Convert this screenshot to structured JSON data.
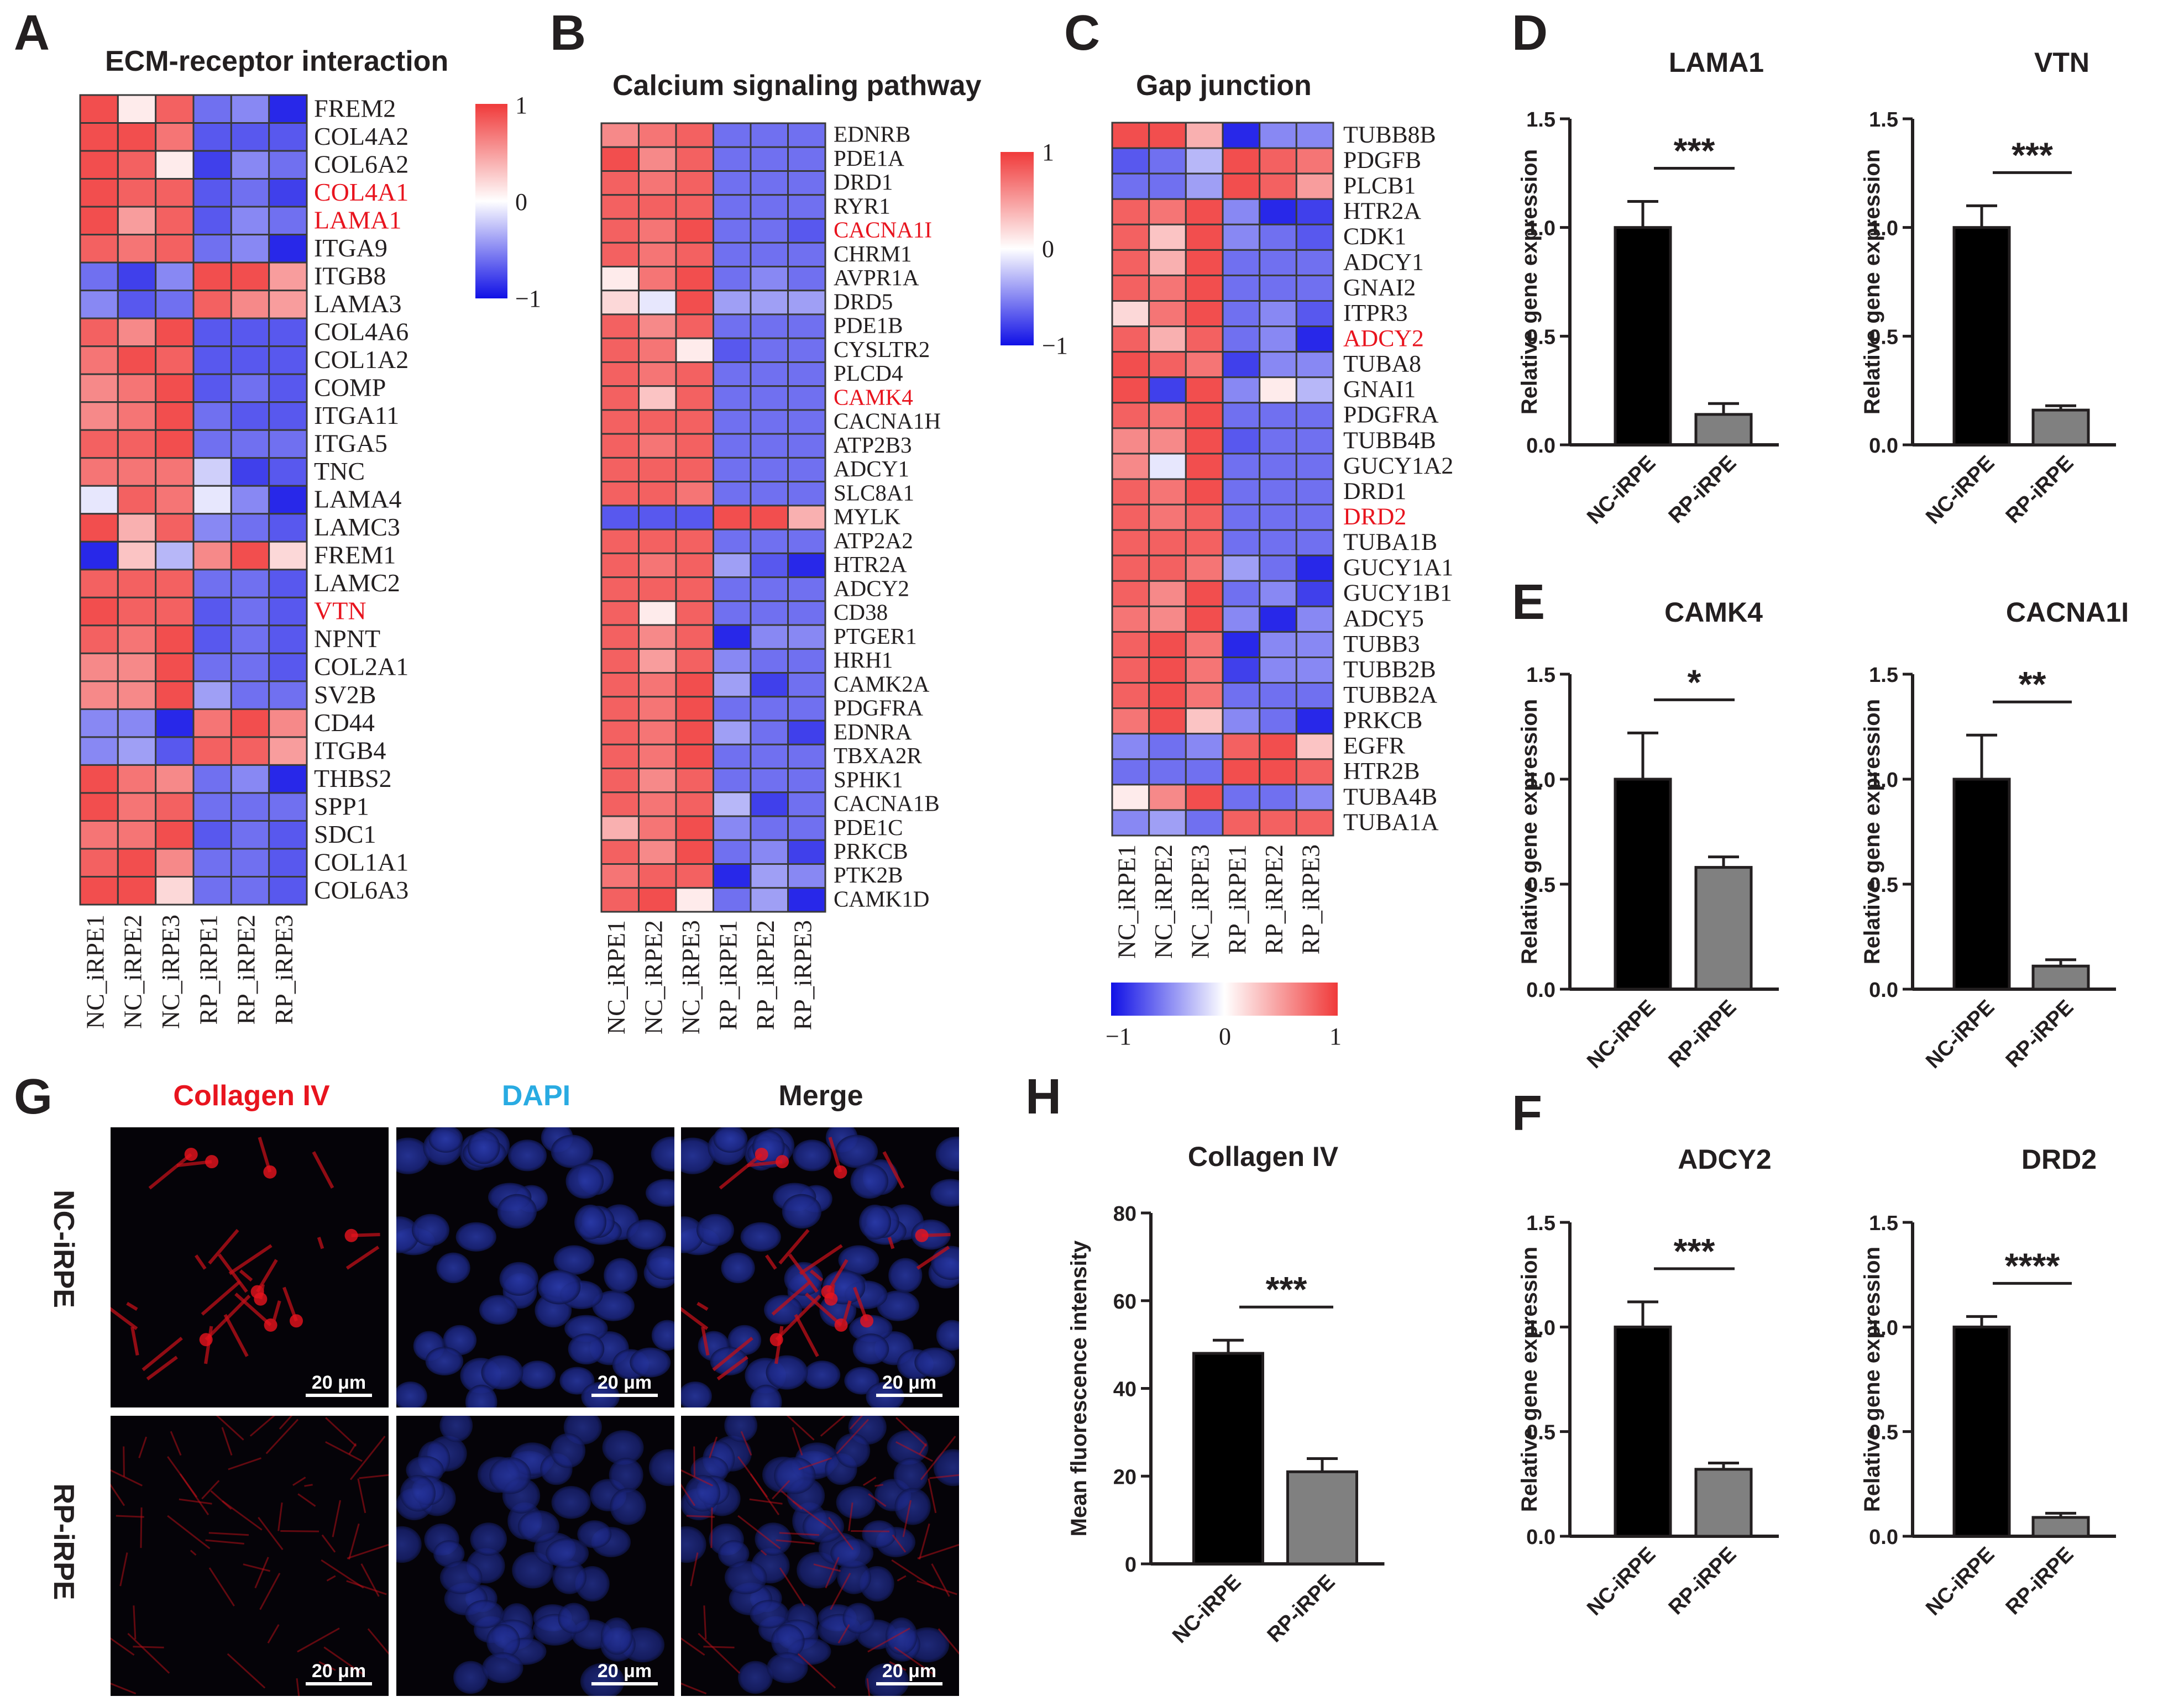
{
  "panels": {
    "A": "A",
    "B": "B",
    "C": "C",
    "D": "D",
    "E": "E",
    "F": "F",
    "G": "G",
    "H": "H"
  },
  "colors": {
    "high": "#f03a3a",
    "mid": "#ffffff",
    "low": "#1010e6",
    "highlight": "#e8141e",
    "bar_nc": "#000000",
    "bar_rp": "#808080"
  },
  "chart_data": [
    {
      "id": "heatmapA",
      "type": "heatmap",
      "title": "ECM-receptor interaction",
      "columns": [
        "NC_iRPE1",
        "NC_iRPE2",
        "NC_iRPE3",
        "RP_iRPE1",
        "RP_iRPE2",
        "RP_iRPE3"
      ],
      "rows": [
        "FREM2",
        "COL4A2",
        "COL6A2",
        "COL4A1",
        "LAMA1",
        "ITGA9",
        "ITGB8",
        "LAMA3",
        "COL4A6",
        "COL1A2",
        "COMP",
        "ITGA11",
        "ITGA5",
        "TNC",
        "LAMA4",
        "LAMC3",
        "FREM1",
        "LAMC2",
        "VTN",
        "NPNT",
        "COL2A1",
        "SV2B",
        "CD44",
        "ITGB4",
        "THBS2",
        "SPP1",
        "SDC1",
        "COL1A1",
        "COL6A3"
      ],
      "highlighted": [
        "COL4A1",
        "LAMA1",
        "VTN"
      ],
      "legend": {
        "max": "1",
        "mid": "0",
        "min": "−1"
      },
      "values": [
        [
          0.9,
          0.1,
          0.8,
          -0.6,
          -0.5,
          -0.9
        ],
        [
          0.9,
          0.9,
          0.7,
          -0.7,
          -0.7,
          -0.7
        ],
        [
          0.9,
          0.8,
          0.1,
          -0.8,
          -0.5,
          -0.6
        ],
        [
          0.9,
          0.8,
          0.8,
          -0.7,
          -0.6,
          -0.8
        ],
        [
          0.9,
          0.5,
          0.8,
          -0.7,
          -0.5,
          -0.6
        ],
        [
          0.8,
          0.7,
          0.8,
          -0.6,
          -0.5,
          -0.9
        ],
        [
          -0.6,
          -0.8,
          -0.5,
          0.9,
          0.9,
          0.5
        ],
        [
          -0.5,
          -0.7,
          -0.6,
          0.8,
          0.6,
          0.5
        ],
        [
          0.8,
          0.6,
          0.9,
          -0.7,
          -0.7,
          -0.7
        ],
        [
          0.7,
          0.9,
          0.8,
          -0.7,
          -0.7,
          -0.7
        ],
        [
          0.6,
          0.7,
          0.9,
          -0.7,
          -0.6,
          -0.7
        ],
        [
          0.6,
          0.7,
          0.9,
          -0.6,
          -0.7,
          -0.7
        ],
        [
          0.8,
          0.8,
          0.9,
          -0.6,
          -0.6,
          -0.6
        ],
        [
          0.7,
          0.7,
          0.7,
          -0.2,
          -0.8,
          -0.7
        ],
        [
          -0.1,
          0.8,
          0.7,
          -0.1,
          -0.5,
          -0.9
        ],
        [
          0.9,
          0.4,
          0.8,
          -0.5,
          -0.6,
          -0.7
        ],
        [
          -0.9,
          0.3,
          -0.3,
          0.6,
          0.9,
          0.2
        ],
        [
          0.8,
          0.8,
          0.8,
          -0.6,
          -0.6,
          -0.7
        ],
        [
          0.9,
          0.8,
          0.8,
          -0.7,
          -0.6,
          -0.7
        ],
        [
          0.8,
          0.7,
          0.9,
          -0.7,
          -0.6,
          -0.7
        ],
        [
          0.6,
          0.6,
          0.9,
          -0.6,
          -0.6,
          -0.7
        ],
        [
          0.6,
          0.6,
          0.9,
          -0.4,
          -0.6,
          -0.6
        ],
        [
          -0.5,
          -0.5,
          -0.9,
          0.7,
          0.9,
          0.6
        ],
        [
          -0.5,
          -0.4,
          -0.7,
          0.8,
          0.8,
          0.5
        ],
        [
          0.9,
          0.7,
          0.6,
          -0.6,
          -0.5,
          -0.9
        ],
        [
          0.9,
          0.7,
          0.8,
          -0.6,
          -0.6,
          -0.6
        ],
        [
          0.7,
          0.7,
          0.9,
          -0.7,
          -0.6,
          -0.7
        ],
        [
          0.8,
          0.9,
          0.6,
          -0.6,
          -0.6,
          -0.7
        ],
        [
          0.9,
          0.9,
          0.2,
          -0.6,
          -0.6,
          -0.7
        ]
      ]
    },
    {
      "id": "heatmapB",
      "type": "heatmap",
      "title": "Calcium signaling pathway",
      "columns": [
        "NC_iRPE1",
        "NC_iRPE2",
        "NC_iRPE3",
        "RP_iRPE1",
        "RP_iRPE2",
        "RP_iRPE3"
      ],
      "rows": [
        "EDNRB",
        "PDE1A",
        "DRD1",
        "RYR1",
        "CACNA1I",
        "CHRM1",
        "AVPR1A",
        "DRD5",
        "PDE1B",
        "CYSLTR2",
        "PLCD4",
        "CAMK4",
        "CACNA1H",
        "ATP2B3",
        "ADCY1",
        "SLC8A1",
        "MYLK",
        "ATP2A2",
        "HTR2A",
        "ADCY2",
        "CD38",
        "PTGER1",
        "HRH1",
        "CAMK2A",
        "PDGFRA",
        "EDNRA",
        "TBXA2R",
        "SPHK1",
        "CACNA1B",
        "PDE1C",
        "PRKCB",
        "PTK2B",
        "CAMK1D"
      ],
      "highlighted": [
        "CACNA1I",
        "CAMK4"
      ],
      "legend": {
        "max": "1",
        "mid": "0",
        "min": "−1"
      },
      "values": [
        [
          0.6,
          0.7,
          0.8,
          -0.6,
          -0.6,
          -0.6
        ],
        [
          0.9,
          0.6,
          0.8,
          -0.6,
          -0.6,
          -0.6
        ],
        [
          0.8,
          0.7,
          0.8,
          -0.6,
          -0.6,
          -0.6
        ],
        [
          0.8,
          0.8,
          0.8,
          -0.6,
          -0.6,
          -0.6
        ],
        [
          0.8,
          0.7,
          0.9,
          -0.6,
          -0.6,
          -0.7
        ],
        [
          0.8,
          0.7,
          0.8,
          -0.6,
          -0.6,
          -0.6
        ],
        [
          0.1,
          0.7,
          0.9,
          -0.6,
          -0.5,
          -0.6
        ],
        [
          0.2,
          -0.1,
          0.9,
          -0.4,
          -0.4,
          -0.4
        ],
        [
          0.8,
          0.6,
          0.8,
          -0.6,
          -0.6,
          -0.6
        ],
        [
          0.8,
          0.7,
          0.1,
          -0.7,
          -0.6,
          -0.6
        ],
        [
          0.8,
          0.7,
          0.8,
          -0.6,
          -0.6,
          -0.6
        ],
        [
          0.8,
          0.3,
          0.8,
          -0.6,
          -0.6,
          -0.6
        ],
        [
          0.8,
          0.8,
          0.8,
          -0.6,
          -0.6,
          -0.6
        ],
        [
          0.8,
          0.7,
          0.8,
          -0.6,
          -0.6,
          -0.6
        ],
        [
          0.8,
          0.8,
          0.8,
          -0.6,
          -0.6,
          -0.6
        ],
        [
          0.8,
          0.8,
          0.7,
          -0.6,
          -0.6,
          -0.6
        ],
        [
          -0.7,
          -0.7,
          -0.7,
          0.9,
          0.9,
          0.4
        ],
        [
          0.8,
          0.8,
          0.8,
          -0.6,
          -0.6,
          -0.6
        ],
        [
          0.8,
          0.7,
          0.8,
          -0.4,
          -0.7,
          -0.9
        ],
        [
          0.8,
          0.8,
          0.8,
          -0.6,
          -0.6,
          -0.6
        ],
        [
          0.8,
          0.1,
          0.8,
          -0.6,
          -0.6,
          -0.6
        ],
        [
          0.8,
          0.6,
          0.8,
          -0.9,
          -0.5,
          -0.5
        ],
        [
          0.8,
          0.5,
          0.8,
          -0.5,
          -0.6,
          -0.6
        ],
        [
          0.8,
          0.7,
          0.9,
          -0.4,
          -0.8,
          -0.6
        ],
        [
          0.8,
          0.7,
          0.9,
          -0.6,
          -0.6,
          -0.6
        ],
        [
          0.8,
          0.7,
          0.9,
          -0.4,
          -0.6,
          -0.8
        ],
        [
          0.8,
          0.7,
          0.9,
          -0.6,
          -0.6,
          -0.6
        ],
        [
          0.8,
          0.6,
          0.8,
          -0.6,
          -0.6,
          -0.6
        ],
        [
          0.8,
          0.7,
          0.8,
          -0.3,
          -0.8,
          -0.6
        ],
        [
          0.4,
          0.7,
          0.9,
          -0.5,
          -0.6,
          -0.6
        ],
        [
          0.8,
          0.6,
          0.9,
          -0.6,
          -0.5,
          -0.8
        ],
        [
          0.7,
          0.8,
          0.8,
          -0.9,
          -0.4,
          -0.5
        ],
        [
          0.8,
          0.9,
          0.1,
          -0.6,
          -0.4,
          -0.9
        ]
      ]
    },
    {
      "id": "heatmapC",
      "type": "heatmap",
      "title": "Gap  junction",
      "columns": [
        "NC_iRPE1",
        "NC_iRPE2",
        "NC_iRPE3",
        "RP_iRPE1",
        "RP_iRPE2",
        "RP_iRPE3"
      ],
      "rows": [
        "TUBB8B",
        "PDGFB",
        "PLCB1",
        "HTR2A",
        "CDK1",
        "ADCY1",
        "GNAI2",
        "ITPR3",
        "ADCY2",
        "TUBA8",
        "GNAI1",
        "PDGFRA",
        "TUBB4B",
        "GUCY1A2",
        "DRD1",
        "DRD2",
        "TUBA1B",
        "GUCY1A1",
        "GUCY1B1",
        "ADCY5",
        "TUBB3",
        "TUBB2B",
        "TUBB2A",
        "PRKCB",
        "EGFR",
        "HTR2B",
        "TUBA4B",
        "TUBA1A"
      ],
      "highlighted": [
        "ADCY2",
        "DRD2"
      ],
      "legend": {
        "max": "1",
        "mid": "0",
        "min": "−1"
      },
      "values": [
        [
          0.9,
          0.9,
          0.4,
          -0.9,
          -0.5,
          -0.5
        ],
        [
          -0.7,
          -0.6,
          -0.3,
          0.9,
          0.8,
          0.7
        ],
        [
          -0.6,
          -0.6,
          -0.4,
          0.9,
          0.8,
          0.5
        ],
        [
          0.8,
          0.7,
          0.9,
          -0.5,
          -0.9,
          -0.8
        ],
        [
          0.8,
          0.3,
          0.9,
          -0.5,
          -0.6,
          -0.7
        ],
        [
          0.8,
          0.4,
          0.9,
          -0.6,
          -0.6,
          -0.6
        ],
        [
          0.8,
          0.7,
          0.9,
          -0.6,
          -0.6,
          -0.6
        ],
        [
          0.2,
          0.7,
          0.9,
          -0.6,
          -0.5,
          -0.7
        ],
        [
          0.8,
          0.4,
          0.8,
          -0.6,
          -0.5,
          -0.9
        ],
        [
          0.9,
          0.8,
          0.7,
          -0.8,
          -0.5,
          -0.5
        ],
        [
          0.9,
          -0.8,
          0.9,
          -0.5,
          0.1,
          -0.3
        ],
        [
          0.8,
          0.7,
          0.9,
          -0.6,
          -0.6,
          -0.6
        ],
        [
          0.6,
          0.6,
          0.9,
          -0.7,
          -0.6,
          -0.6
        ],
        [
          0.6,
          -0.1,
          0.9,
          -0.6,
          -0.6,
          -0.6
        ],
        [
          0.8,
          0.7,
          0.9,
          -0.6,
          -0.6,
          -0.6
        ],
        [
          0.8,
          0.7,
          0.8,
          -0.6,
          -0.6,
          -0.6
        ],
        [
          0.8,
          0.8,
          0.8,
          -0.6,
          -0.6,
          -0.6
        ],
        [
          0.8,
          0.8,
          0.7,
          -0.4,
          -0.6,
          -0.9
        ],
        [
          0.8,
          0.6,
          0.9,
          -0.6,
          -0.5,
          -0.8
        ],
        [
          0.7,
          0.6,
          0.9,
          -0.5,
          -0.9,
          -0.5
        ],
        [
          0.8,
          0.9,
          0.7,
          -0.9,
          -0.5,
          -0.5
        ],
        [
          0.8,
          0.9,
          0.7,
          -0.8,
          -0.5,
          -0.5
        ],
        [
          0.8,
          0.9,
          0.7,
          -0.6,
          -0.6,
          -0.6
        ],
        [
          0.7,
          0.9,
          0.3,
          -0.5,
          -0.6,
          -0.9
        ],
        [
          -0.5,
          -0.6,
          -0.5,
          0.8,
          0.9,
          0.3
        ],
        [
          -0.6,
          -0.6,
          -0.6,
          0.9,
          0.9,
          0.8
        ],
        [
          0.1,
          0.6,
          0.9,
          -0.6,
          -0.6,
          -0.5
        ],
        [
          -0.5,
          -0.4,
          -0.6,
          0.8,
          0.8,
          0.8
        ]
      ]
    },
    {
      "id": "barLAMA1",
      "type": "bar",
      "title": "LAMA1",
      "categories": [
        "NC-iRPE",
        "RP-iRPE"
      ],
      "values": [
        1.0,
        0.14
      ],
      "errors": [
        0.12,
        0.05
      ],
      "ylabel": "Relative gene expression",
      "ylim": [
        0,
        1.5
      ],
      "yticks": [
        "0.0",
        "0.5",
        "1.0",
        "1.5"
      ],
      "significance": "***"
    },
    {
      "id": "barVTN",
      "type": "bar",
      "title": "VTN",
      "categories": [
        "NC-iRPE",
        "RP-iRPE"
      ],
      "values": [
        1.0,
        0.16
      ],
      "errors": [
        0.1,
        0.02
      ],
      "ylabel": "Relative gene expression",
      "ylim": [
        0,
        1.5
      ],
      "yticks": [
        "0.0",
        "0.5",
        "1.0",
        "1.5"
      ],
      "significance": "***"
    },
    {
      "id": "barCAMK4",
      "type": "bar",
      "title": "CAMK4",
      "categories": [
        "NC-iRPE",
        "RP-iRPE"
      ],
      "values": [
        1.0,
        0.58
      ],
      "errors": [
        0.22,
        0.05
      ],
      "ylabel": "Relative gene expression",
      "ylim": [
        0,
        1.5
      ],
      "yticks": [
        "0.0",
        "0.5",
        "1.0",
        "1.5"
      ],
      "significance": "*"
    },
    {
      "id": "barCACNA1I",
      "type": "bar",
      "title": "CACNA1I",
      "categories": [
        "NC-iRPE",
        "RP-iRPE"
      ],
      "values": [
        1.0,
        0.11
      ],
      "errors": [
        0.21,
        0.03
      ],
      "ylabel": "Relative gene expression",
      "ylim": [
        0,
        1.5
      ],
      "yticks": [
        "0.0",
        "0.5",
        "1.0",
        "1.5"
      ],
      "significance": "**"
    },
    {
      "id": "barADCY2",
      "type": "bar",
      "title": "ADCY2",
      "categories": [
        "NC-iRPE",
        "RP-iRPE"
      ],
      "values": [
        1.0,
        0.32
      ],
      "errors": [
        0.12,
        0.03
      ],
      "ylabel": "Relative gene expression",
      "ylim": [
        0,
        1.5
      ],
      "yticks": [
        "0.0",
        "0.5",
        "1.0",
        "1.5"
      ],
      "significance": "***"
    },
    {
      "id": "barDRD2",
      "type": "bar",
      "title": "DRD2",
      "categories": [
        "NC-iRPE",
        "RP-iRPE"
      ],
      "values": [
        1.0,
        0.09
      ],
      "errors": [
        0.05,
        0.02
      ],
      "ylabel": "Relative gene expression",
      "ylim": [
        0,
        1.5
      ],
      "yticks": [
        "0.0",
        "0.5",
        "1.0",
        "1.5"
      ],
      "significance": "****"
    },
    {
      "id": "barCollagen",
      "type": "bar",
      "title": "Collagen IV",
      "categories": [
        "NC-iRPE",
        "RP-iRPE"
      ],
      "values": [
        48,
        21
      ],
      "errors": [
        3,
        3
      ],
      "ylabel": "Mean fluorescence intensity",
      "ylim": [
        0,
        80
      ],
      "yticks": [
        "0",
        "20",
        "40",
        "60",
        "80"
      ],
      "significance": "***"
    }
  ],
  "microscopy": {
    "channels": [
      "Collagen IV",
      "DAPI",
      "Merge"
    ],
    "channel_colors": [
      "#e8141e",
      "#29abe2",
      "#231f20"
    ],
    "rows": [
      "NC-iRPE",
      "RP-iRPE"
    ],
    "scale_bar": "20 μm"
  }
}
